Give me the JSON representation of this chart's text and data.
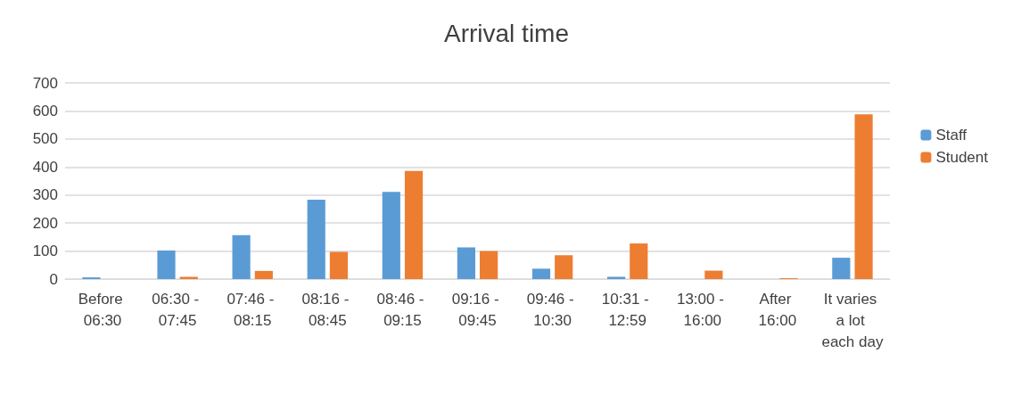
{
  "chart_data": {
    "type": "bar",
    "title": "Arrival time",
    "categories": [
      "Before 06:30",
      "06:30 - 07:45",
      "07:46 - 08:15",
      "08:16 - 08:45",
      "08:46 - 09:15",
      "09:16 - 09:45",
      "09:46 - 10:30",
      "10:31 - 12:59",
      "13:00 - 16:00",
      "After 16:00",
      "It varies a lot each day"
    ],
    "series": [
      {
        "name": "Staff",
        "color": "#5b9bd5",
        "values": [
          6,
          102,
          157,
          283,
          311,
          113,
          37,
          8,
          0,
          0,
          76
        ]
      },
      {
        "name": "Student",
        "color": "#ed7d31",
        "values": [
          0,
          8,
          29,
          97,
          386,
          100,
          85,
          127,
          30,
          3,
          588
        ]
      }
    ],
    "ylim": [
      0,
      700
    ],
    "yticks": [
      0,
      100,
      200,
      300,
      400,
      500,
      600,
      700
    ],
    "grid": "y",
    "legend": "right"
  }
}
